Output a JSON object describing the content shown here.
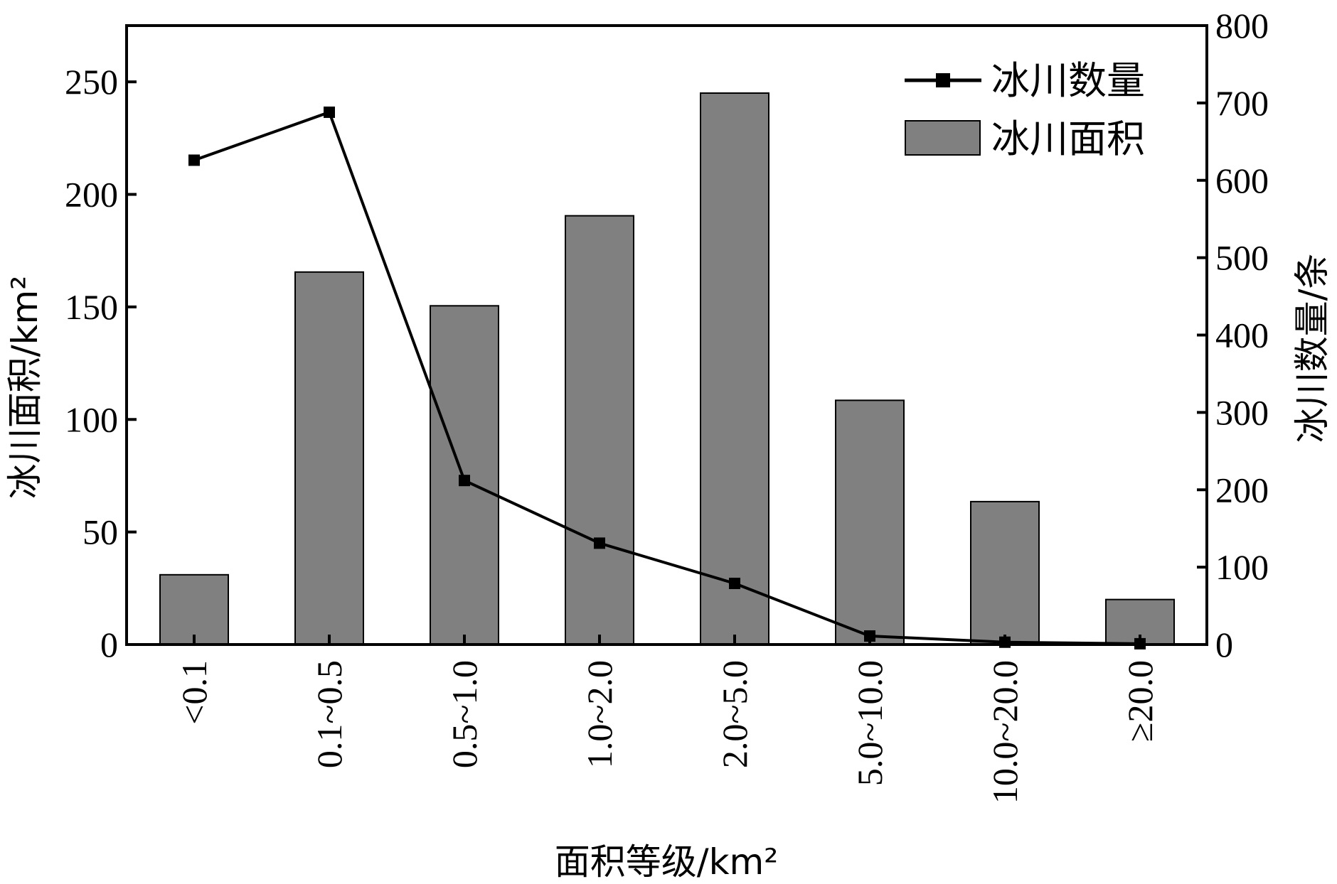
{
  "chart_data": {
    "type": "bar",
    "categories": [
      "<0.1",
      "0.1~0.5",
      "0.5~1.0",
      "1.0~2.0",
      "2.0~5.0",
      "5.0~10.0",
      "10.0~20.0",
      "≥20.0"
    ],
    "series": [
      {
        "name": "冰川面积",
        "type": "bar",
        "axis": "left",
        "color": "#808080",
        "values": [
          31,
          165.5,
          150.5,
          190.5,
          245,
          108.5,
          63.5,
          20
        ]
      },
      {
        "name": "冰川数量",
        "type": "line",
        "axis": "right",
        "color": "#000000",
        "marker": "square",
        "values": [
          626,
          688,
          212,
          131,
          79,
          11,
          3,
          1
        ]
      }
    ],
    "xlabel": "面积等级/km²",
    "ylabel_left": "冰川面积/km²",
    "ylabel_right": "冰川数量/条",
    "ylim_left": [
      0,
      275
    ],
    "ylim_right": [
      0,
      800
    ],
    "yticks_left": [
      "0",
      "50",
      "100",
      "150",
      "200",
      "250"
    ],
    "yticks_right": [
      "0",
      "100",
      "200",
      "300",
      "400",
      "500",
      "600",
      "700",
      "800"
    ],
    "legend_position": "top-right",
    "grid": false
  }
}
